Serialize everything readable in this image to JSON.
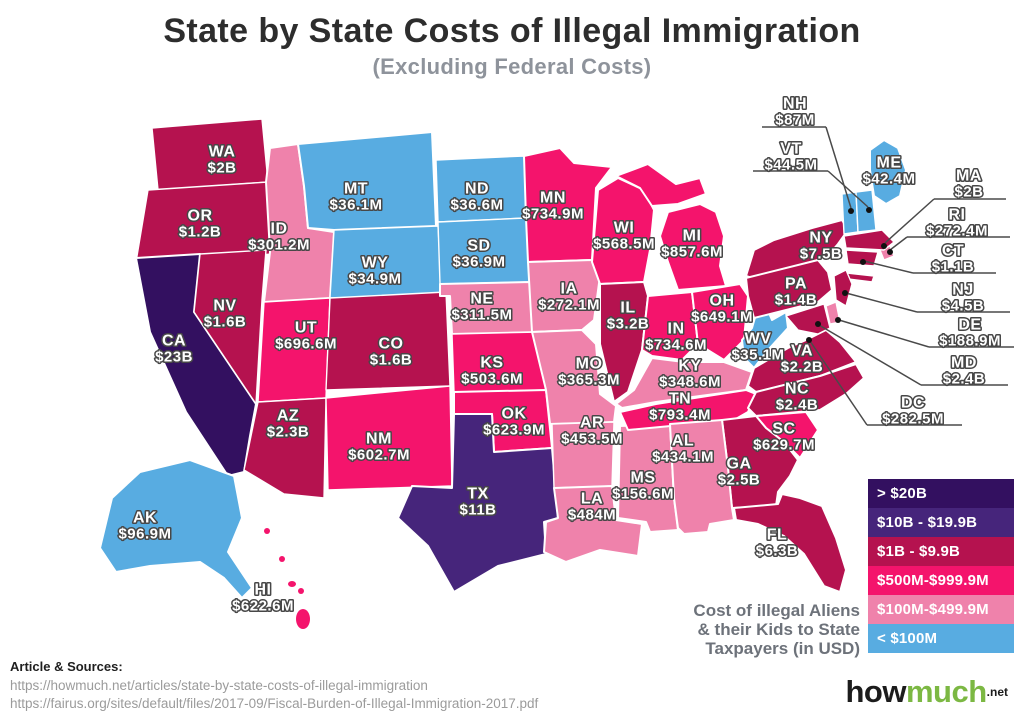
{
  "title": "State by State Costs of Illegal Immigration",
  "subtitle": "(Excluding Federal Costs)",
  "legend": {
    "tiers": [
      {
        "id": "t1",
        "label": "> $20B",
        "color": "#331060"
      },
      {
        "id": "t2",
        "label": "$10B - $19.9B",
        "color": "#46257b"
      },
      {
        "id": "t3",
        "label": "$1B - $9.9B",
        "color": "#b5124f"
      },
      {
        "id": "t4",
        "label": "$500M-$999.9M",
        "color": "#f4146c"
      },
      {
        "id": "t5",
        "label": "$100M-$499.9M",
        "color": "#ef82ab"
      },
      {
        "id": "t6",
        "label": "< $100M",
        "color": "#58ace1"
      }
    ]
  },
  "note": {
    "lines": [
      "Cost of illegal Aliens",
      "& their Kids to State",
      "Taxpayers (in USD)"
    ]
  },
  "footer": {
    "heading": "Article & Sources:",
    "sources": [
      "https://howmuch.net/articles/state-by-state-costs-of-illegal-immigration",
      "https://fairus.org/sites/default/files/2017-09/Fiscal-Burden-of-Illegal-Immigration-2017.pdf"
    ]
  },
  "logo": {
    "part1": "how",
    "part2": "much",
    "suffix": ".net"
  },
  "chart_data": {
    "type": "choropleth",
    "title": "State by State Costs of Illegal Immigration (Excluding Federal Costs)",
    "unit": "USD",
    "legend_tiers": [
      "> $20B",
      "$10B - $19.9B",
      "$1B - $9.9B",
      "$500M-$999.9M",
      "$100M-$499.9M",
      "< $100M"
    ],
    "states": [
      {
        "abbr": "WA",
        "value": "$2B",
        "tier": "t3"
      },
      {
        "abbr": "OR",
        "value": "$1.2B",
        "tier": "t3"
      },
      {
        "abbr": "CA",
        "value": "$23B",
        "tier": "t1"
      },
      {
        "abbr": "NV",
        "value": "$1.6B",
        "tier": "t3"
      },
      {
        "abbr": "ID",
        "value": "$301.2M",
        "tier": "t5"
      },
      {
        "abbr": "MT",
        "value": "$36.1M",
        "tier": "t6"
      },
      {
        "abbr": "WY",
        "value": "$34.9M",
        "tier": "t6"
      },
      {
        "abbr": "UT",
        "value": "$696.6M",
        "tier": "t4"
      },
      {
        "abbr": "CO",
        "value": "$1.6B",
        "tier": "t3"
      },
      {
        "abbr": "AZ",
        "value": "$2.3B",
        "tier": "t3"
      },
      {
        "abbr": "NM",
        "value": "$602.7M",
        "tier": "t4"
      },
      {
        "abbr": "ND",
        "value": "$36.6M",
        "tier": "t6"
      },
      {
        "abbr": "SD",
        "value": "$36.9M",
        "tier": "t6"
      },
      {
        "abbr": "NE",
        "value": "$311.5M",
        "tier": "t5"
      },
      {
        "abbr": "KS",
        "value": "$503.6M",
        "tier": "t4"
      },
      {
        "abbr": "OK",
        "value": "$623.9M",
        "tier": "t4"
      },
      {
        "abbr": "TX",
        "value": "$11B",
        "tier": "t2"
      },
      {
        "abbr": "MN",
        "value": "$734.9M",
        "tier": "t4"
      },
      {
        "abbr": "IA",
        "value": "$272.1M",
        "tier": "t5"
      },
      {
        "abbr": "MO",
        "value": "$365.3M",
        "tier": "t5"
      },
      {
        "abbr": "AR",
        "value": "$453.5M",
        "tier": "t5"
      },
      {
        "abbr": "LA",
        "value": "$484M",
        "tier": "t5"
      },
      {
        "abbr": "WI",
        "value": "$568.5M",
        "tier": "t4"
      },
      {
        "abbr": "IL",
        "value": "$3.2B",
        "tier": "t3"
      },
      {
        "abbr": "MS",
        "value": "$156.6M",
        "tier": "t5"
      },
      {
        "abbr": "MI",
        "value": "$857.6M",
        "tier": "t4"
      },
      {
        "abbr": "IN",
        "value": "$734.6M",
        "tier": "t4"
      },
      {
        "abbr": "OH",
        "value": "$649.1M",
        "tier": "t4"
      },
      {
        "abbr": "KY",
        "value": "$348.6M",
        "tier": "t5"
      },
      {
        "abbr": "TN",
        "value": "$793.4M",
        "tier": "t4"
      },
      {
        "abbr": "WV",
        "value": "$35.1M",
        "tier": "t6"
      },
      {
        "abbr": "VA",
        "value": "$2.2B",
        "tier": "t3"
      },
      {
        "abbr": "NC",
        "value": "$2.4B",
        "tier": "t3"
      },
      {
        "abbr": "SC",
        "value": "$629.7M",
        "tier": "t4"
      },
      {
        "abbr": "GA",
        "value": "$2.5B",
        "tier": "t3"
      },
      {
        "abbr": "AL",
        "value": "$434.1M",
        "tier": "t5"
      },
      {
        "abbr": "FL",
        "value": "$6.3B",
        "tier": "t3"
      },
      {
        "abbr": "NY",
        "value": "$7.5B",
        "tier": "t3"
      },
      {
        "abbr": "PA",
        "value": "$1.4B",
        "tier": "t3"
      },
      {
        "abbr": "NJ",
        "value": "$4.5B",
        "tier": "t3"
      },
      {
        "abbr": "CT",
        "value": "$1.1B",
        "tier": "t3"
      },
      {
        "abbr": "RI",
        "value": "$272.4M",
        "tier": "t5"
      },
      {
        "abbr": "MA",
        "value": "$2B",
        "tier": "t3"
      },
      {
        "abbr": "VT",
        "value": "$44.5M",
        "tier": "t6"
      },
      {
        "abbr": "NH",
        "value": "$87M",
        "tier": "t6"
      },
      {
        "abbr": "ME",
        "value": "$42.4M",
        "tier": "t6"
      },
      {
        "abbr": "DE",
        "value": "$188.9M",
        "tier": "t5"
      },
      {
        "abbr": "MD",
        "value": "$2.4B",
        "tier": "t3"
      },
      {
        "abbr": "DC",
        "value": "$282.5M",
        "tier": "t5"
      },
      {
        "abbr": "AK",
        "value": "$96.9M",
        "tier": "t6"
      },
      {
        "abbr": "HI",
        "value": "$622.6M",
        "tier": "t4"
      }
    ]
  }
}
